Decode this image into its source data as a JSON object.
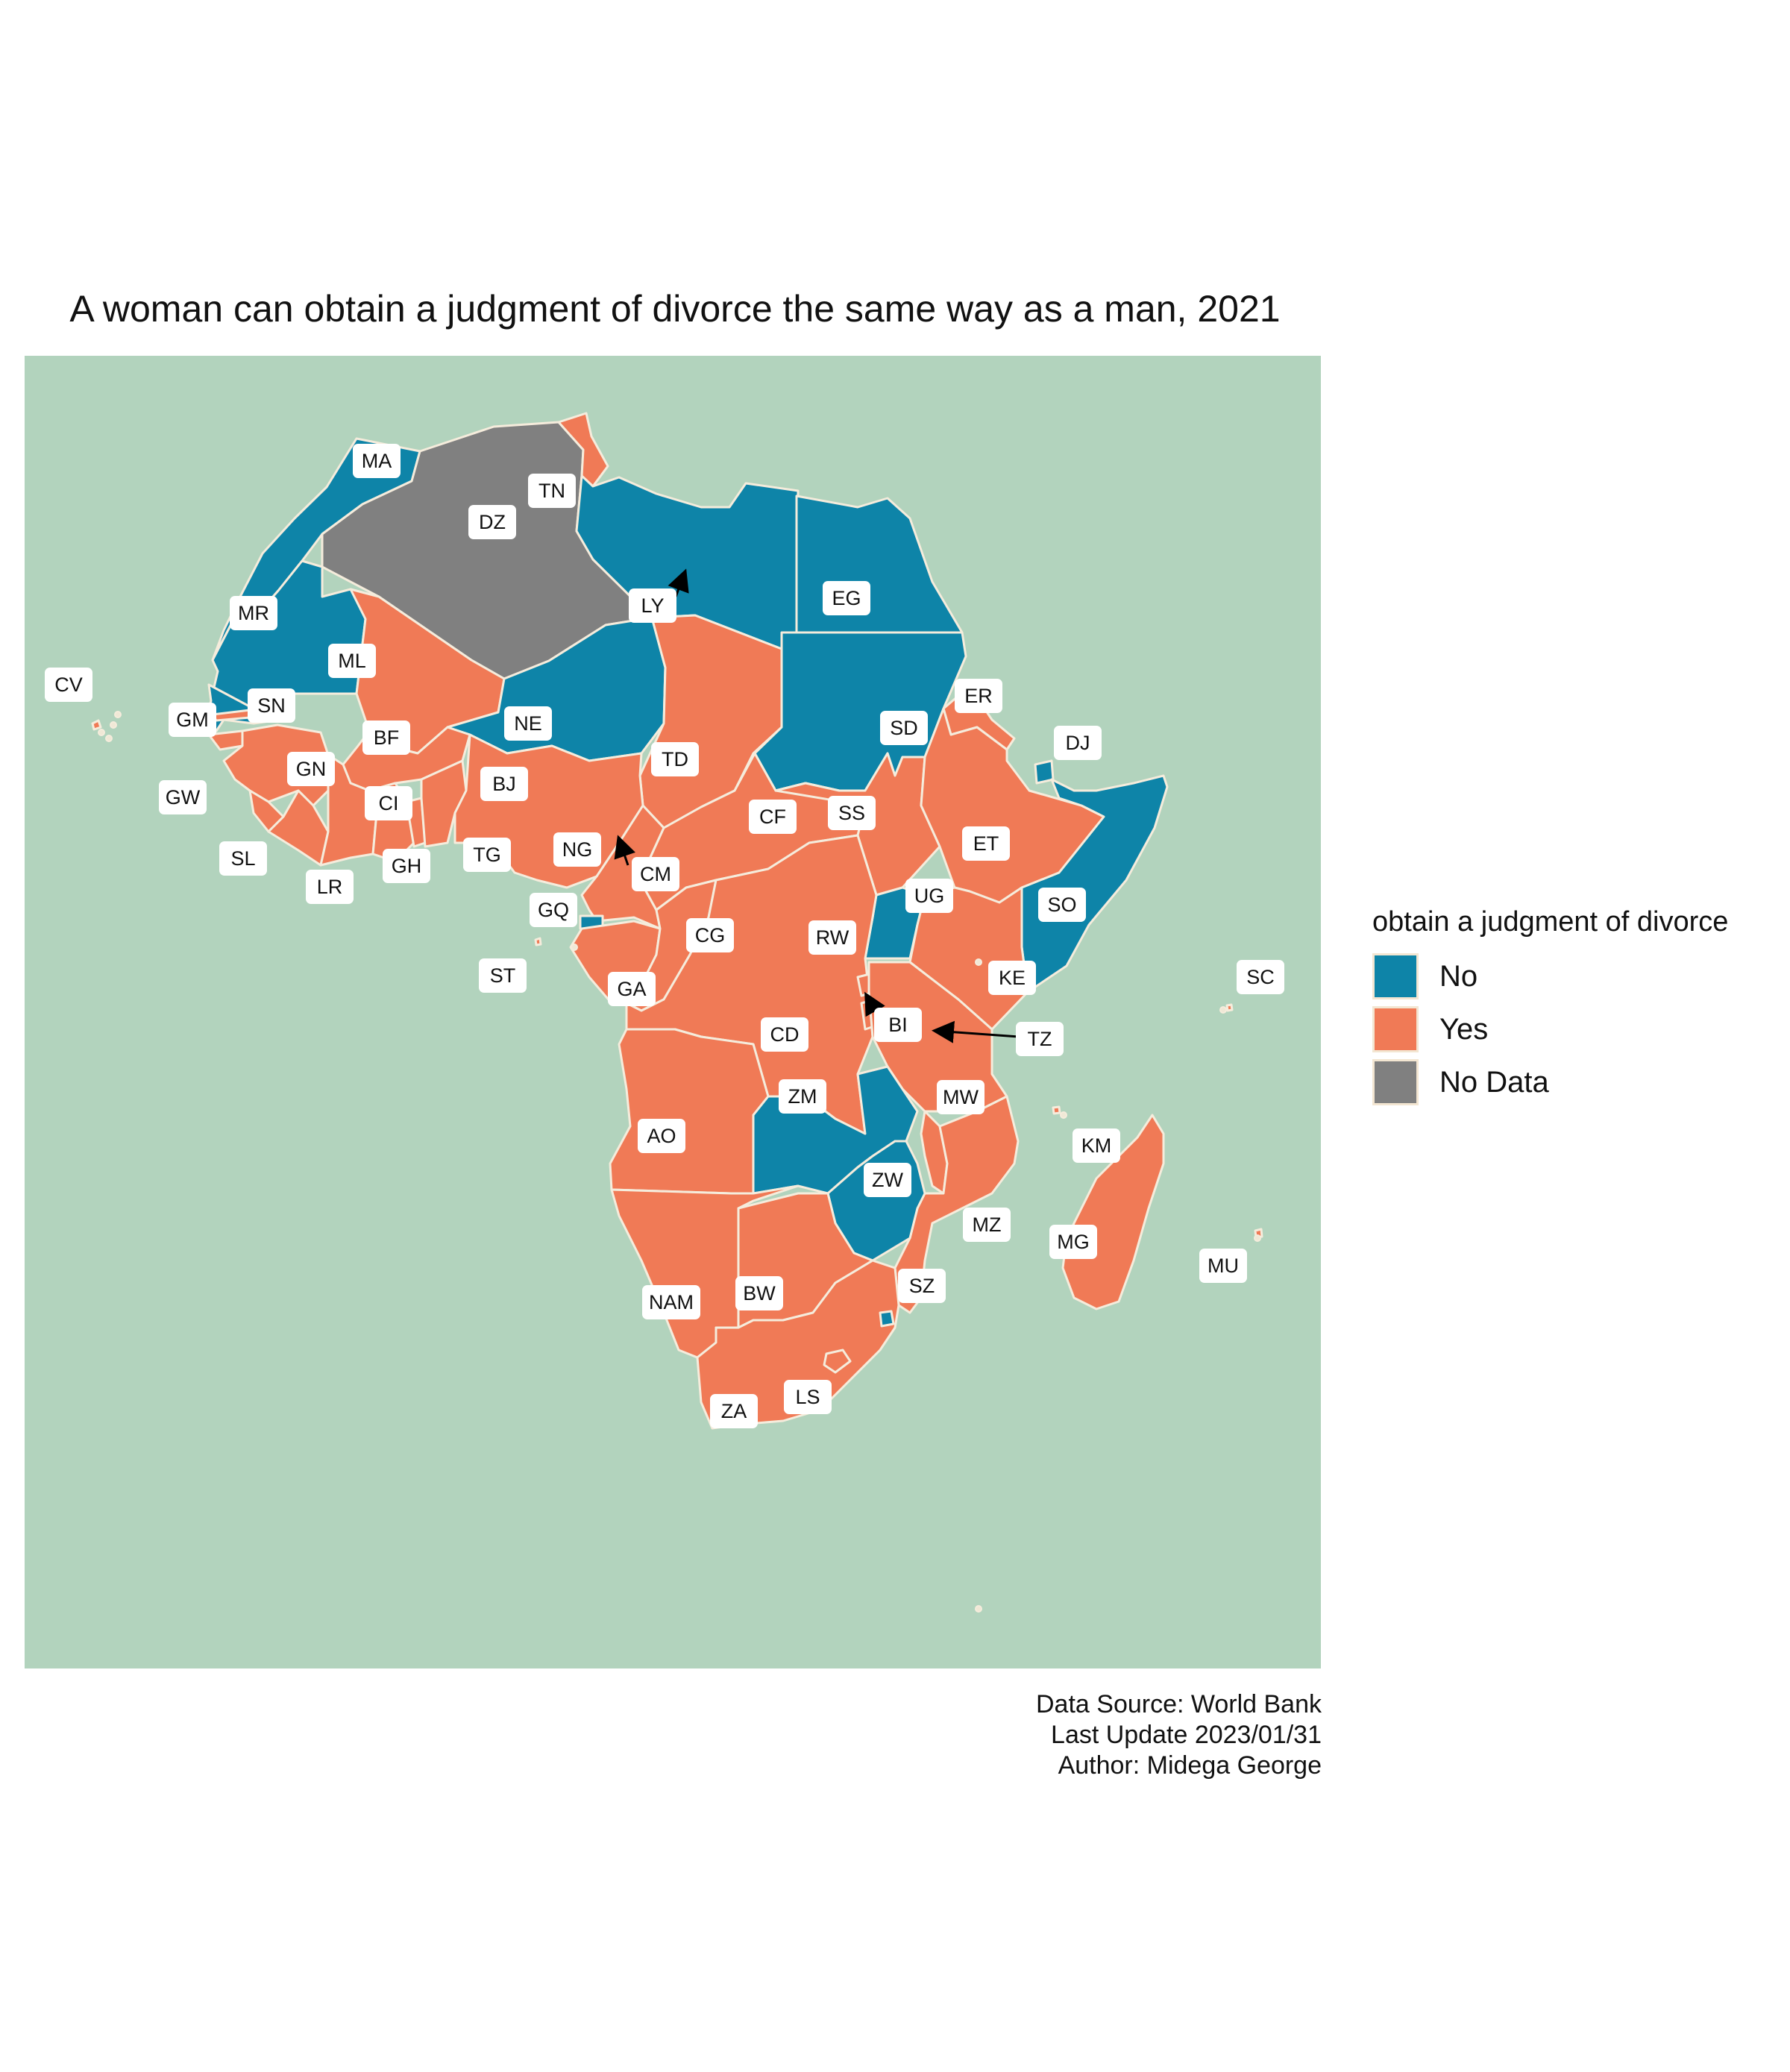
{
  "title": "A woman can obtain a judgment of divorce the same way as a man, 2021",
  "legend": {
    "title": "obtain a judgment of divorce",
    "items": [
      {
        "label": "No",
        "color": "#0e84a8"
      },
      {
        "label": "Yes",
        "color": "#f07a56"
      },
      {
        "label": "No Data",
        "color": "#808080"
      }
    ]
  },
  "caption": {
    "line1": "Data Source: World Bank",
    "line2": "Last Update 2023/01/31",
    "line3": "Author: Midega George"
  },
  "colors": {
    "ocean": "#b2d3bd",
    "border": "#f5ecdc",
    "no": "#0e84a8",
    "yes": "#f07a56",
    "nodata": "#808080"
  },
  "countries": [
    {
      "code": "MA",
      "status": "No"
    },
    {
      "code": "DZ",
      "status": "No Data"
    },
    {
      "code": "TN",
      "status": "Yes"
    },
    {
      "code": "LY",
      "status": "No"
    },
    {
      "code": "EG",
      "status": "No"
    },
    {
      "code": "MR",
      "status": "No"
    },
    {
      "code": "ML",
      "status": "Yes"
    },
    {
      "code": "NE",
      "status": "No"
    },
    {
      "code": "TD",
      "status": "Yes"
    },
    {
      "code": "SD",
      "status": "No"
    },
    {
      "code": "ER",
      "status": "Yes"
    },
    {
      "code": "DJ",
      "status": "No"
    },
    {
      "code": "CV",
      "status": "Yes"
    },
    {
      "code": "SN",
      "status": "No"
    },
    {
      "code": "GM",
      "status": "Yes"
    },
    {
      "code": "GW",
      "status": "Yes"
    },
    {
      "code": "GN",
      "status": "Yes"
    },
    {
      "code": "BF",
      "status": "Yes"
    },
    {
      "code": "SL",
      "status": "Yes"
    },
    {
      "code": "LR",
      "status": "Yes"
    },
    {
      "code": "CI",
      "status": "Yes"
    },
    {
      "code": "GH",
      "status": "Yes"
    },
    {
      "code": "TG",
      "status": "Yes"
    },
    {
      "code": "BJ",
      "status": "Yes"
    },
    {
      "code": "NG",
      "status": "Yes"
    },
    {
      "code": "CM",
      "status": "Yes"
    },
    {
      "code": "CF",
      "status": "Yes"
    },
    {
      "code": "SS",
      "status": "Yes"
    },
    {
      "code": "ET",
      "status": "Yes"
    },
    {
      "code": "SO",
      "status": "No"
    },
    {
      "code": "UG",
      "status": "No"
    },
    {
      "code": "KE",
      "status": "Yes"
    },
    {
      "code": "GQ",
      "status": "No"
    },
    {
      "code": "ST",
      "status": "Yes"
    },
    {
      "code": "GA",
      "status": "Yes"
    },
    {
      "code": "CG",
      "status": "Yes"
    },
    {
      "code": "RW",
      "status": "Yes"
    },
    {
      "code": "BI",
      "status": "Yes"
    },
    {
      "code": "TZ",
      "status": "Yes"
    },
    {
      "code": "CD",
      "status": "Yes"
    },
    {
      "code": "SC",
      "status": "Yes"
    },
    {
      "code": "ZM",
      "status": "No"
    },
    {
      "code": "MW",
      "status": "Yes"
    },
    {
      "code": "AO",
      "status": "Yes"
    },
    {
      "code": "KM",
      "status": "Yes"
    },
    {
      "code": "ZW",
      "status": "No"
    },
    {
      "code": "MZ",
      "status": "Yes"
    },
    {
      "code": "MG",
      "status": "Yes"
    },
    {
      "code": "MU",
      "status": "Yes"
    },
    {
      "code": "NAM",
      "status": "Yes"
    },
    {
      "code": "BW",
      "status": "Yes"
    },
    {
      "code": "SZ",
      "status": "No"
    },
    {
      "code": "ZA",
      "status": "Yes"
    },
    {
      "code": "LS",
      "status": "Yes"
    }
  ]
}
